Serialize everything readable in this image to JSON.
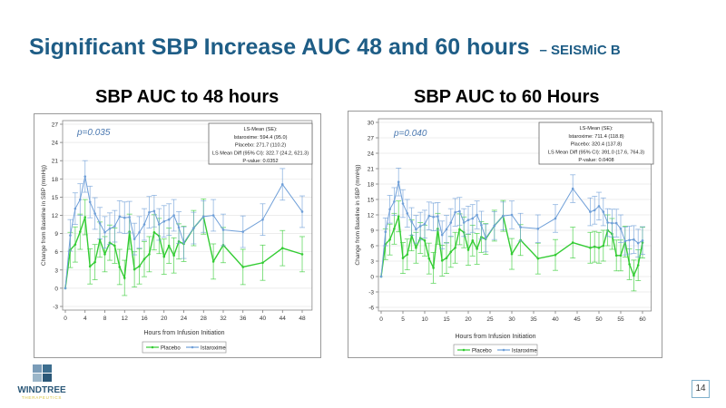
{
  "slide": {
    "title": "Significant SBP Increase AUC 48 and 60 hours",
    "title_suffix": "– SEISMiC B",
    "page_number": "14",
    "logo_text": "WINDTREE",
    "logo_subtext": "THERAPEUTICS"
  },
  "colors": {
    "title": "#1e5d86",
    "placebo": "#33cc33",
    "istaroxime": "#6f9fd8"
  },
  "chart_data": [
    {
      "type": "line",
      "heading": "SBP AUC to 48 hours",
      "annotation": "p=0.035",
      "stats": [
        "LS-Mean (SE):",
        "Istaroxime: 594.4 (95.0)",
        "Placebo: 271.7 (110.2)",
        "LS Mean Diff (95% CI): 322.7 (24.2, 621.3)",
        "P-value: 0.0352"
      ],
      "xlabel": "Hours from Infusion Initiation",
      "ylabel": "Change from Baseline in SBP (mmHg)",
      "xlim": [
        0,
        50
      ],
      "ylim": [
        -3,
        27
      ],
      "xticks": [
        0,
        4,
        8,
        12,
        16,
        20,
        24,
        28,
        32,
        36,
        40,
        44,
        48
      ],
      "yticks": [
        -3,
        0,
        3,
        6,
        9,
        12,
        15,
        18,
        21,
        24,
        27
      ],
      "grid": true,
      "legend": "bottom",
      "x": [
        0,
        1,
        2,
        3,
        4,
        5,
        6,
        7,
        8,
        9,
        10,
        11,
        12,
        13,
        14,
        15,
        16,
        17,
        18,
        19,
        20,
        21,
        22,
        23,
        24,
        26,
        28,
        30,
        32,
        36,
        40,
        44,
        48
      ],
      "series": [
        {
          "name": "Placebo",
          "color": "#33cc33",
          "error_halfwidth": 2.9,
          "values": [
            0,
            6.3,
            7.2,
            9.3,
            11.7,
            3.6,
            4.3,
            8.0,
            5.6,
            7.5,
            7.0,
            3.5,
            1.7,
            9.3,
            3.1,
            3.6,
            4.8,
            5.6,
            9.2,
            8.6,
            5.2,
            7.0,
            5.4,
            7.7,
            7.3,
            9.9,
            11.8,
            4.4,
            7.1,
            3.5,
            4.2,
            6.6,
            5.6
          ]
        },
        {
          "name": "Istaroxime",
          "color": "#6f9fd8",
          "error_halfwidth": 2.6,
          "values": [
            0,
            8.7,
            13.1,
            14.6,
            18.4,
            14.2,
            12.3,
            10.7,
            9.2,
            9.8,
            10.2,
            11.8,
            11.6,
            11.7,
            8.1,
            9.2,
            10.5,
            12.5,
            12.7,
            10.5,
            11.0,
            11.3,
            12.0,
            10.0,
            7.5,
            9.9,
            11.8,
            12.0,
            9.6,
            9.3,
            11.3,
            17.1,
            12.6
          ]
        }
      ]
    },
    {
      "type": "line",
      "heading": "SBP AUC to 60 Hours",
      "annotation": "p=0.040",
      "stats": [
        "LS-Mean (SE):",
        "Istaroxime: 711.4 (118.8)",
        "Placebo: 320.4 (137.8)",
        "LS Mean Diff (95% CI): 391.0 (17.6, 764.3)",
        "P-value: 0.0408"
      ],
      "xlabel": "Hours from Infusion Initiation",
      "ylabel": "Change from Baseline in SBP (mmHg)",
      "xlim": [
        0,
        62
      ],
      "ylim": [
        -6,
        30
      ],
      "xticks": [
        0,
        5,
        10,
        15,
        20,
        25,
        30,
        35,
        40,
        45,
        50,
        55,
        60
      ],
      "yticks": [
        -6,
        -3,
        0,
        3,
        6,
        9,
        12,
        15,
        18,
        21,
        24,
        27,
        30
      ],
      "grid": true,
      "legend": "bottom",
      "x": [
        0,
        1,
        2,
        3,
        4,
        5,
        6,
        7,
        8,
        9,
        10,
        11,
        12,
        13,
        14,
        15,
        16,
        17,
        18,
        19,
        20,
        21,
        22,
        23,
        24,
        26,
        28,
        30,
        32,
        36,
        40,
        44,
        48,
        49,
        50,
        51,
        52,
        53,
        54,
        55,
        56,
        57,
        58,
        59,
        60
      ],
      "series": [
        {
          "name": "Placebo",
          "color": "#33cc33",
          "error_halfwidth": 3.0,
          "values": [
            0,
            6.3,
            7.2,
            9.3,
            11.7,
            3.6,
            4.3,
            8.0,
            5.6,
            7.5,
            7.0,
            3.5,
            1.7,
            9.3,
            3.1,
            3.6,
            4.8,
            5.6,
            9.2,
            8.6,
            5.2,
            7.0,
            5.4,
            7.7,
            7.3,
            9.9,
            11.8,
            4.4,
            7.1,
            3.5,
            4.2,
            6.6,
            5.6,
            5.8,
            5.6,
            6.0,
            9.0,
            8.3,
            4.1,
            4.1,
            6.8,
            2.4,
            0.2,
            2.2,
            6.6
          ]
        },
        {
          "name": "Istaroxime",
          "color": "#6f9fd8",
          "error_halfwidth": 2.7,
          "values": [
            0,
            8.7,
            13.1,
            14.6,
            18.4,
            14.2,
            12.3,
            10.7,
            9.2,
            9.8,
            10.2,
            11.8,
            11.6,
            11.7,
            8.1,
            9.2,
            10.5,
            12.5,
            12.7,
            10.5,
            11.0,
            11.3,
            12.0,
            10.0,
            7.5,
            9.9,
            11.8,
            12.0,
            9.6,
            9.3,
            11.3,
            17.1,
            12.6,
            12.9,
            13.7,
            12.6,
            10.5,
            10.4,
            10.4,
            9.3,
            6.9,
            7.1,
            7.2,
            6.5,
            7.0
          ]
        }
      ]
    }
  ]
}
